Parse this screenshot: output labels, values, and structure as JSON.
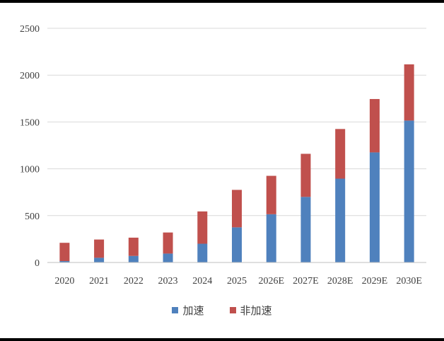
{
  "chart_data": {
    "type": "bar",
    "stacked": true,
    "categories": [
      "2020",
      "2021",
      "2022",
      "2023",
      "2024",
      "2025",
      "2026E",
      "2027E",
      "2028E",
      "2029E",
      "2030E"
    ],
    "series": [
      {
        "name": "加速",
        "color": "#4f81bd",
        "values": [
          15,
          50,
          70,
          95,
          200,
          375,
          515,
          700,
          895,
          1175,
          1515
        ]
      },
      {
        "name": "非加速",
        "color": "#c0504d",
        "values": [
          195,
          195,
          195,
          225,
          345,
          400,
          410,
          460,
          530,
          570,
          600
        ]
      }
    ],
    "yticks": [
      0,
      500,
      1000,
      1500,
      2000,
      2500
    ],
    "ylim": [
      0,
      2500
    ],
    "grid": true,
    "legend_position": "bottom"
  }
}
